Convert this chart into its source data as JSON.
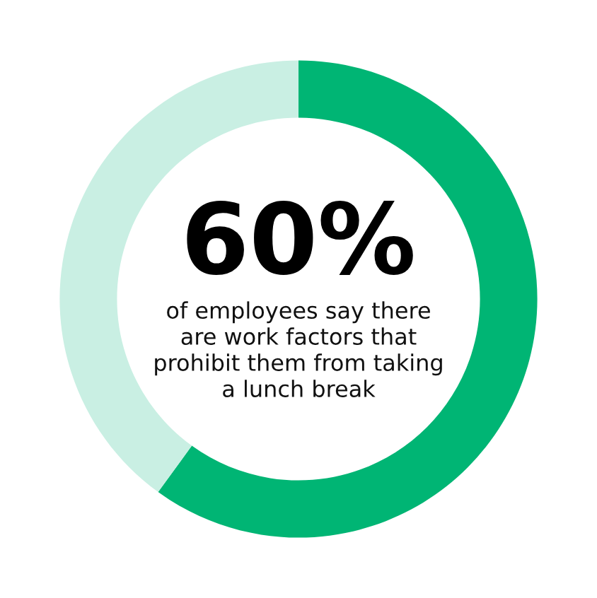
{
  "chart_data": {
    "type": "donut",
    "categories": [
      null,
      null
    ],
    "values": [
      60,
      40
    ],
    "colors": [
      "#00b574",
      "#c9efe3"
    ],
    "value_labels": [
      "60%",
      null
    ],
    "annotations": [
      "of employees say there\nare work factors that\nprohibit them from taking\na lunch break"
    ]
  }
}
